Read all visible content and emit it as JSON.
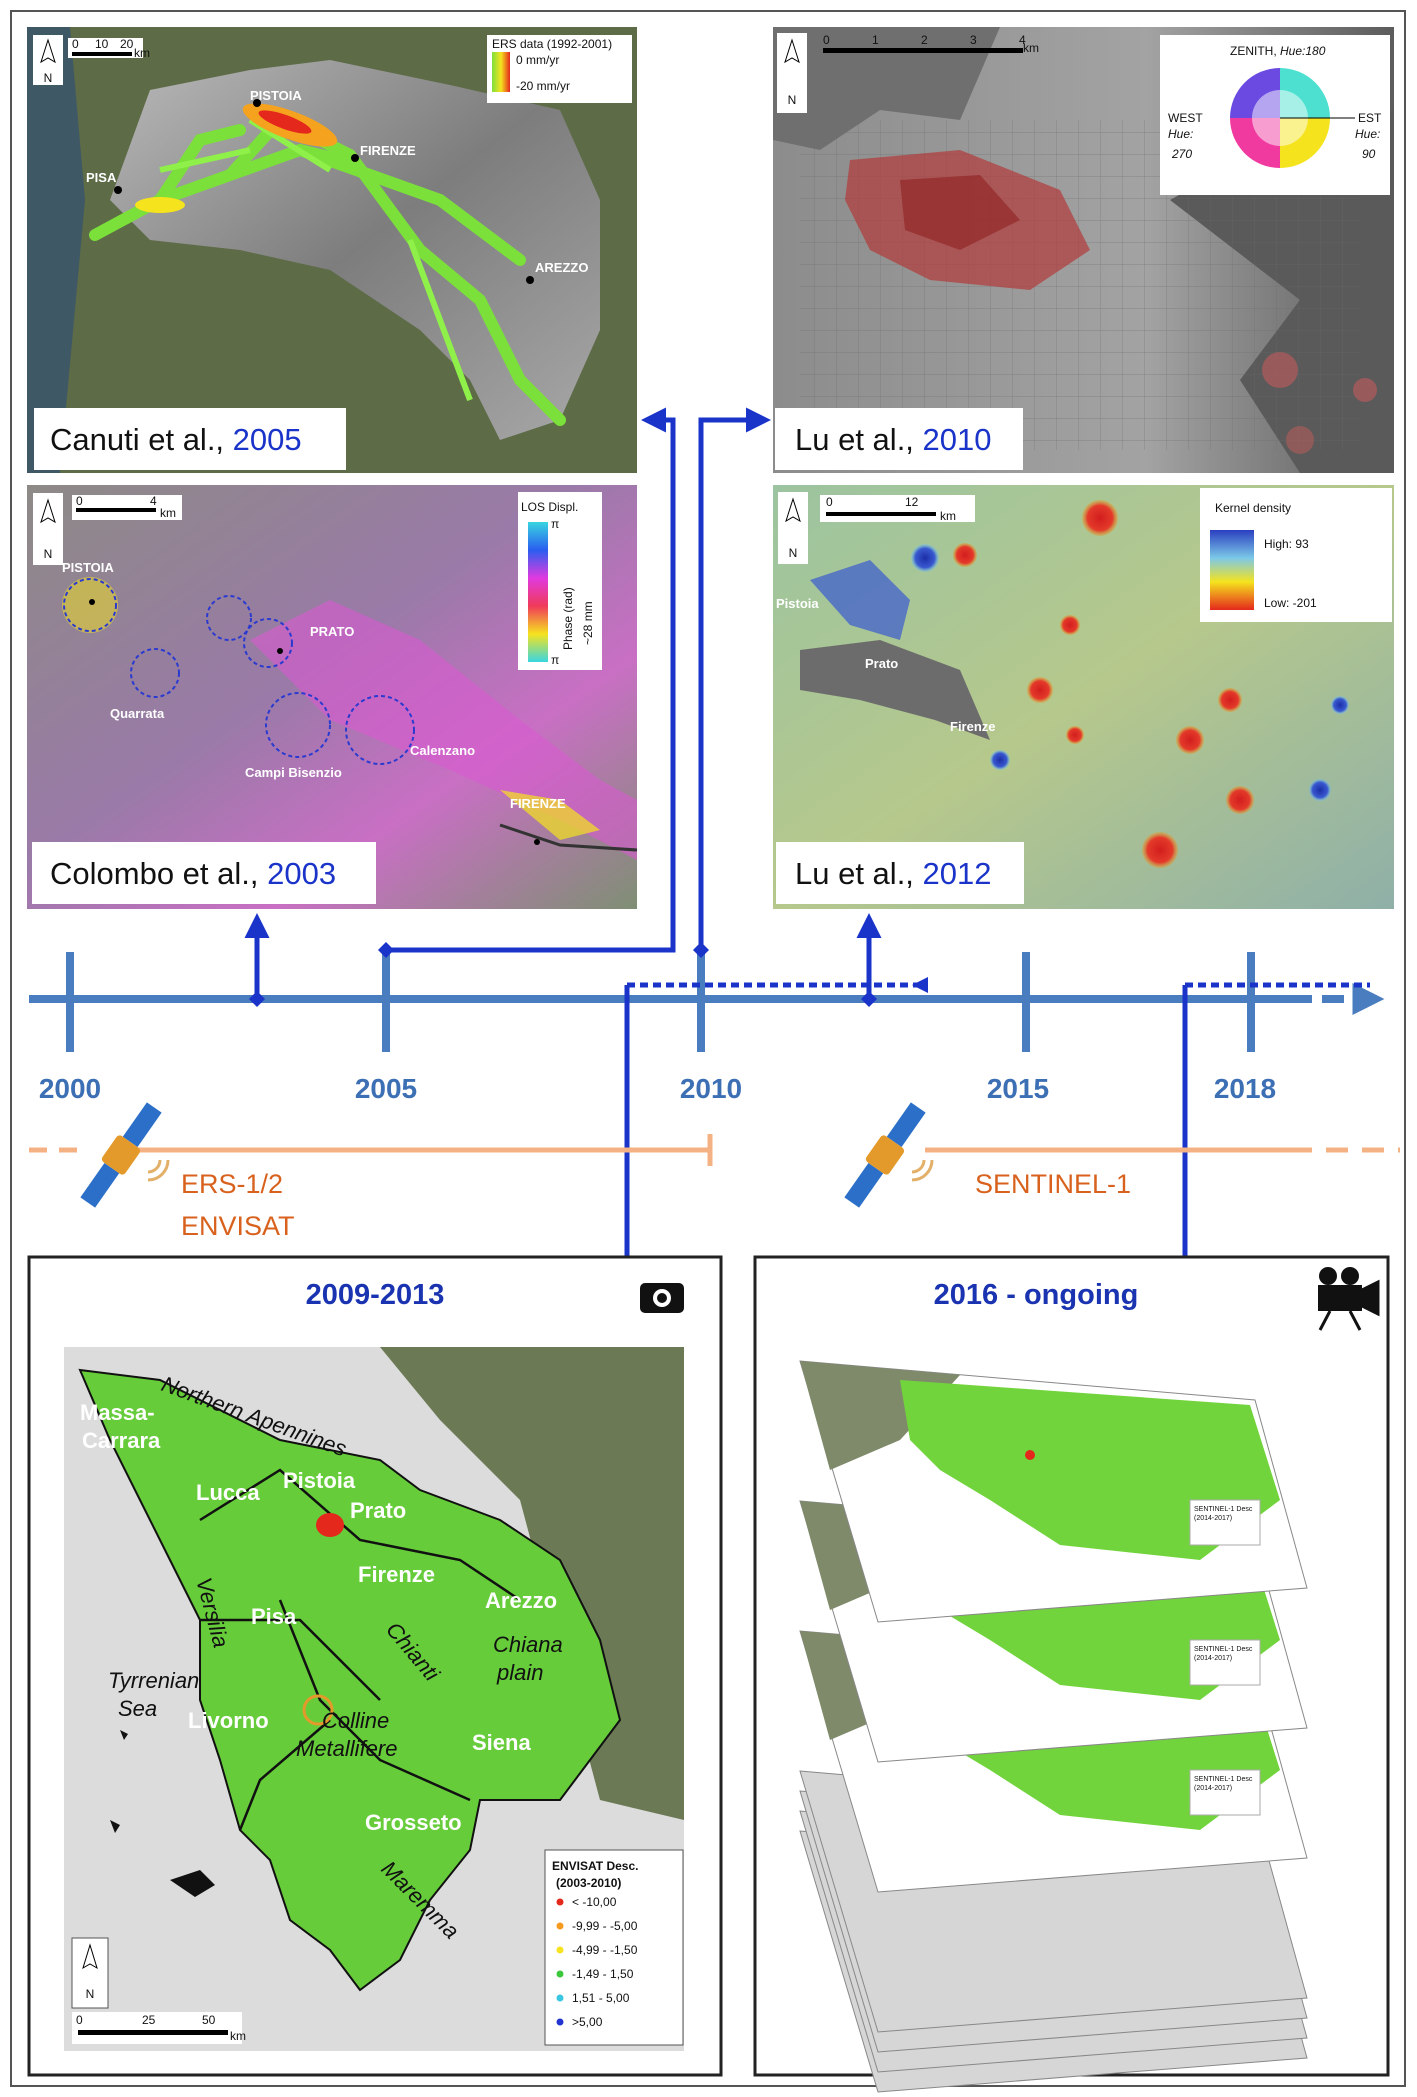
{
  "canuti": {
    "citation": "Canuti et al.,",
    "year": "2005",
    "scale": [
      "0",
      "10",
      "20",
      "km"
    ],
    "north": "N",
    "legend_title": "ERS data (1992-2001)",
    "legend_high": "0 mm/yr",
    "legend_low": "-20 mm/yr",
    "places": [
      "PISTOIA",
      "FIRENZE",
      "PISA",
      "AREZZO"
    ]
  },
  "lu2010": {
    "citation": "Lu et al.,",
    "year": "2010",
    "scale": [
      "0",
      "1",
      "2",
      "3",
      "4",
      "km"
    ],
    "north": "N",
    "wheel": {
      "zenith": "ZENITH,",
      "zenith_hue": "Hue:180",
      "west": "WEST",
      "west_hue": "Hue:",
      "west_value": "270",
      "east": "EST",
      "east_hue": "Hue:",
      "east_value": "90"
    }
  },
  "colombo": {
    "citation": "Colombo et al.,",
    "year": "2003",
    "scale": [
      "0",
      "4",
      "km"
    ],
    "north": "N",
    "legend_title": "LOS Displ.",
    "legend_axis": "Phase (rad)",
    "legend_mm": "~28 mm",
    "legend_top": "π",
    "legend_bottom": "π",
    "places": [
      "PISTOIA",
      "PRATO",
      "Quarrata",
      "Campi Bisenzio",
      "Calenzano",
      "FIRENZE"
    ]
  },
  "lu2012": {
    "citation": "Lu et al.,",
    "year": "2012",
    "scale": [
      "0",
      "12",
      "km"
    ],
    "north": "N",
    "legend_title": "Kernel density",
    "legend_high": "High: 93",
    "legend_low": "Low: -201",
    "places": [
      "Pistoia",
      "Prato",
      "Firenze"
    ]
  },
  "timeline": {
    "years": [
      "2000",
      "2005",
      "2010",
      "2015",
      "2018"
    ]
  },
  "missions": {
    "left": [
      "ERS-1/2",
      "ENVISAT"
    ],
    "right": "SENTINEL-1"
  },
  "envisat_panel": {
    "title": "2009-2013",
    "places": [
      "Massa-",
      "Carrara",
      "Northern Apennines",
      "Lucca",
      "Pistoia",
      "Prato",
      "Versilia",
      "Firenze",
      "Arezzo",
      "Pisa",
      "Chianti",
      "Chiana",
      "plain",
      "Tyrrenian",
      "Sea",
      "Livorno",
      "Colline",
      "Metallifere",
      "Siena",
      "Grosseto",
      "Maremma"
    ],
    "legend_title": [
      "ENVISAT Desc.",
      "(2003-2010)"
    ],
    "legend_classes": [
      "< -10,00",
      "-9,99 - -5,00",
      "-4,99 - -1,50",
      "-1,49 - 1,50",
      "1,51 - 5,00",
      ">5,00"
    ],
    "scale": [
      "0",
      "25",
      "50",
      "km"
    ],
    "north": "N"
  },
  "sentinel_panel": {
    "title": "2016 - ongoing",
    "layer_legend": [
      "SENTINEL-1 Desc",
      "(2014-2017)"
    ]
  }
}
